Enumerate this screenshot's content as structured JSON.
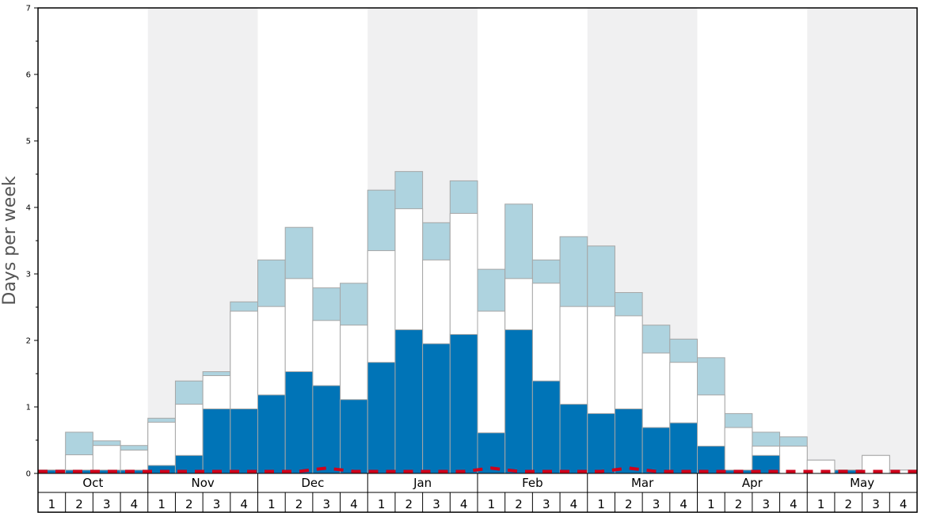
{
  "chart_data": {
    "type": "bar",
    "ylabel": "Days per week",
    "ylim": [
      0,
      7
    ],
    "yticks": [
      0,
      1,
      2,
      3,
      4,
      5,
      6,
      7
    ],
    "months": [
      "Oct",
      "Nov",
      "Dec",
      "Jan",
      "Feb",
      "Mar",
      "Apr",
      "May"
    ],
    "week_labels": [
      "1",
      "2",
      "3",
      "4"
    ],
    "shaded_months": [
      "Nov",
      "Jan",
      "Mar",
      "May"
    ],
    "colors": {
      "dark": "#0074b7",
      "white": "#ffffff",
      "light": "#aed3df",
      "shade": "#f0f0f1",
      "line": "#d0021b",
      "bar_edge": "#a6a6a6"
    },
    "series": [
      {
        "key": "dark",
        "values": [
          0.05,
          0.05,
          0.05,
          0.05,
          0.12,
          0.27,
          0.97,
          0.97,
          1.18,
          1.53,
          1.32,
          1.11,
          1.67,
          2.16,
          1.95,
          2.09,
          0.61,
          2.16,
          1.39,
          1.04,
          0.9,
          0.97,
          0.69,
          0.76,
          0.41,
          0.05,
          0.27,
          0.0,
          0.0,
          0.05,
          0.0,
          0.0
        ]
      },
      {
        "key": "white",
        "values": [
          0.05,
          0.28,
          0.42,
          0.35,
          0.77,
          1.04,
          1.47,
          2.44,
          2.51,
          2.93,
          2.3,
          2.23,
          3.35,
          3.98,
          3.21,
          3.91,
          2.44,
          2.93,
          2.86,
          2.51,
          2.51,
          2.37,
          1.81,
          1.67,
          1.18,
          0.69,
          0.41,
          0.41,
          0.2,
          0.05,
          0.27,
          0.05
        ]
      },
      {
        "key": "light",
        "values": [
          0.05,
          0.62,
          0.49,
          0.42,
          0.83,
          1.39,
          1.53,
          2.58,
          3.21,
          3.7,
          2.79,
          2.86,
          4.26,
          4.54,
          3.77,
          4.4,
          3.07,
          4.05,
          3.21,
          3.56,
          3.42,
          2.72,
          2.23,
          2.02,
          1.74,
          0.9,
          0.62,
          0.55,
          0.2,
          0.05,
          0.27,
          0.05
        ]
      },
      {
        "key": "line",
        "values": [
          0.03,
          0.03,
          0.03,
          0.03,
          0.03,
          0.03,
          0.03,
          0.03,
          0.03,
          0.03,
          0.08,
          0.03,
          0.03,
          0.03,
          0.03,
          0.03,
          0.08,
          0.03,
          0.03,
          0.03,
          0.03,
          0.08,
          0.03,
          0.03,
          0.03,
          0.03,
          0.03,
          0.03,
          0.03,
          0.03,
          0.03,
          0.03
        ]
      }
    ]
  }
}
